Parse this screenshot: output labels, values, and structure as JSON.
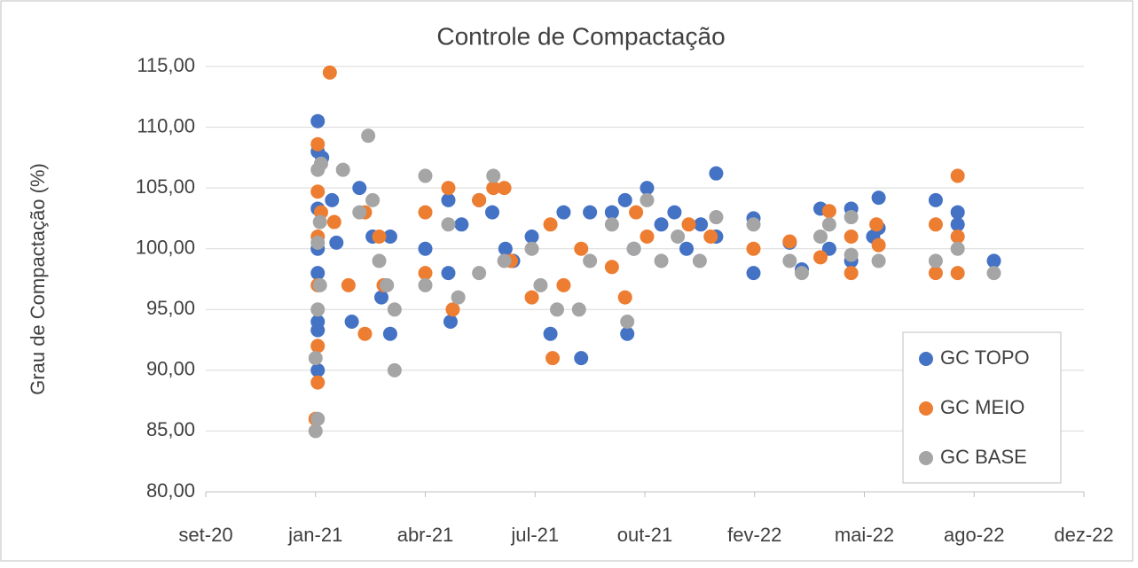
{
  "chart_data": {
    "type": "scatter",
    "title": "Controle de Compactação",
    "y_label": "Grau de Compactação (%)",
    "xlim": [
      44100,
      44900
    ],
    "xticks": [
      {
        "value": 44100,
        "label": "set-20"
      },
      {
        "value": 44200,
        "label": "jan-21"
      },
      {
        "value": 44300,
        "label": "abr-21"
      },
      {
        "value": 44400,
        "label": "jul-21"
      },
      {
        "value": 44500,
        "label": "out-21"
      },
      {
        "value": 44600,
        "label": "fev-22"
      },
      {
        "value": 44700,
        "label": "mai-22"
      },
      {
        "value": 44800,
        "label": "ago-22"
      },
      {
        "value": 44900,
        "label": "dez-22"
      }
    ],
    "ylim": [
      80,
      115
    ],
    "yticks": [
      {
        "value": 80,
        "label": "80,00"
      },
      {
        "value": 85,
        "label": "85,00"
      },
      {
        "value": 90,
        "label": "90,00"
      },
      {
        "value": 95,
        "label": "95,00"
      },
      {
        "value": 100,
        "label": "100,00"
      },
      {
        "value": 105,
        "label": "105,00"
      },
      {
        "value": 110,
        "label": "110,00"
      },
      {
        "value": 115,
        "label": "115,00"
      }
    ],
    "grid": true,
    "legend": "lower right",
    "series": [
      {
        "name": "GC TOPO",
        "color": "#4472c4",
        "x": [
          44202,
          44202,
          44202,
          44202,
          44202,
          44202,
          44202,
          44202,
          44206,
          44215,
          44219,
          44233,
          44240,
          44252,
          44260,
          44268,
          44268,
          44300,
          44321,
          44321,
          44323,
          44333,
          44349,
          44361,
          44373,
          44380,
          44397,
          44414,
          44426,
          44442,
          44450,
          44470,
          44482,
          44484,
          44490,
          44502,
          44515,
          44527,
          44538,
          44551,
          44565,
          44565,
          44599,
          44599,
          44632,
          44643,
          44660,
          44668,
          44688,
          44688,
          44708,
          44713,
          44713,
          44765,
          44785,
          44785,
          44818
        ],
        "values": [
          110.5,
          108,
          103.3,
          100,
          98,
          94,
          93.3,
          90,
          107.5,
          104,
          100.5,
          94,
          105,
          101,
          96,
          93,
          101,
          100,
          104,
          98,
          94,
          102,
          104,
          103,
          100,
          99,
          101,
          93,
          103,
          91,
          103,
          103,
          104,
          93,
          100,
          105,
          102,
          103,
          100,
          102,
          106.2,
          101,
          102.5,
          98,
          100.5,
          98.3,
          103.3,
          100,
          103.3,
          99,
          101,
          104.2,
          101.7,
          104,
          103,
          102,
          99
        ]
      },
      {
        "name": "GC MEIO",
        "color": "#ed7d31",
        "x": [
          44213,
          44202,
          44202,
          44202,
          44202,
          44202,
          44202,
          44200,
          44205,
          44217,
          44230,
          44245,
          44245,
          44258,
          44262,
          44300,
          44300,
          44321,
          44325,
          44349,
          44362,
          44372,
          44378,
          44397,
          44414,
          44416,
          44426,
          44442,
          44470,
          44482,
          44492,
          44502,
          44540,
          44560,
          44599,
          44632,
          44660,
          44668,
          44688,
          44688,
          44711,
          44713,
          44765,
          44765,
          44785,
          44785,
          44785
        ],
        "values": [
          114.5,
          108.6,
          104.7,
          101,
          97,
          92,
          89,
          86,
          103,
          102.2,
          97,
          93,
          103,
          101,
          97,
          103,
          98,
          105,
          95,
          104,
          105,
          105,
          99,
          96,
          102,
          91,
          97,
          100,
          98.5,
          96,
          103,
          101,
          102,
          101,
          100,
          100.6,
          99.3,
          103.1,
          98,
          101,
          102,
          100.3,
          102,
          98,
          106,
          101,
          98
        ]
      },
      {
        "name": "GC BASE",
        "color": "#a5a5a5",
        "x": [
          44200,
          44202,
          44200,
          44202,
          44204,
          44202,
          44204,
          44202,
          44205,
          44225,
          44248,
          44240,
          44252,
          44258,
          44265,
          44272,
          44272,
          44300,
          44300,
          44321,
          44330,
          44349,
          44362,
          44372,
          44397,
          44405,
          44420,
          44440,
          44450,
          44470,
          44484,
          44490,
          44502,
          44515,
          44530,
          44550,
          44565,
          44599,
          44632,
          44643,
          44660,
          44668,
          44688,
          44688,
          44713,
          44765,
          44785,
          44818
        ],
        "values": [
          85,
          86,
          91,
          95,
          97,
          100.5,
          102.2,
          106.5,
          107,
          106.5,
          109.3,
          103,
          104,
          99,
          97,
          95,
          90,
          106,
          97,
          102,
          96,
          98,
          106,
          99,
          100,
          97,
          95,
          95,
          99,
          102,
          94,
          100,
          104,
          99,
          101,
          99,
          102.6,
          102,
          99,
          98,
          101,
          102,
          102.6,
          99.5,
          99,
          99,
          100,
          98
        ]
      }
    ]
  }
}
